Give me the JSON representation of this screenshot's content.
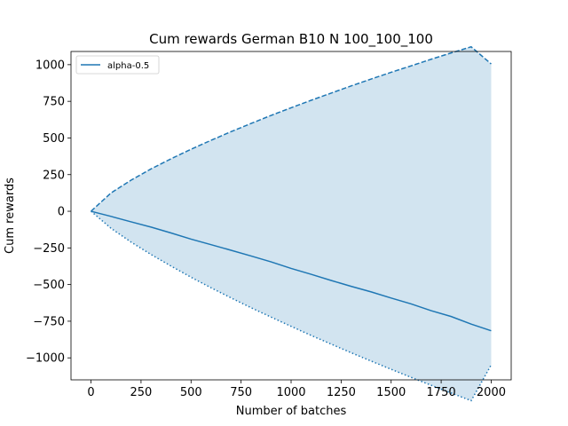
{
  "chart_data": {
    "type": "line",
    "title": "Cum rewards German B10 N 100_100_100",
    "xlabel": "Number of batches",
    "ylabel": "Cum rewards",
    "xlim": [
      -100,
      2100
    ],
    "ylim": [
      -1150,
      1090
    ],
    "x_ticks": [
      0,
      250,
      500,
      750,
      1000,
      1250,
      1500,
      1750,
      2000
    ],
    "y_ticks": [
      -1000,
      -750,
      -500,
      -250,
      0,
      250,
      500,
      750,
      1000
    ],
    "grid": false,
    "legend_position": "top-left",
    "color": "#1f77b4",
    "fill_between": "upper_and_lower",
    "series": [
      {
        "name": "alpha-0.5",
        "style": "solid",
        "x": [
          0,
          100,
          200,
          300,
          400,
          500,
          600,
          700,
          800,
          900,
          1000,
          1100,
          1200,
          1300,
          1400,
          1500,
          1600,
          1700,
          1800,
          1900,
          2000
        ],
        "y": [
          0,
          -35,
          -72,
          -108,
          -148,
          -190,
          -228,
          -266,
          -305,
          -345,
          -390,
          -430,
          -472,
          -512,
          -550,
          -592,
          -632,
          -678,
          -718,
          -770,
          -815
        ]
      },
      {
        "role": "upper",
        "style": "dashed",
        "x": [
          0,
          100,
          200,
          300,
          400,
          500,
          600,
          700,
          800,
          900,
          1000,
          1100,
          1200,
          1300,
          1400,
          1500,
          1600,
          1700,
          1800,
          1900,
          2000
        ],
        "y": [
          0,
          125,
          212,
          289,
          358,
          423,
          484,
          543,
          599,
          654,
          706,
          757,
          806,
          855,
          902,
          948,
          992,
          1037,
          1080,
          1122,
          1005
        ]
      },
      {
        "role": "lower",
        "style": "dotted",
        "x": [
          0,
          100,
          200,
          300,
          400,
          500,
          600,
          700,
          800,
          900,
          1000,
          1100,
          1200,
          1300,
          1400,
          1500,
          1600,
          1700,
          1800,
          1900,
          2000
        ],
        "y": [
          0,
          -116,
          -210,
          -295,
          -374,
          -450,
          -522,
          -591,
          -658,
          -722,
          -785,
          -847,
          -906,
          -965,
          -1022,
          -1078,
          -1133,
          -1187,
          -1240,
          -1292,
          -1048
        ]
      }
    ]
  }
}
